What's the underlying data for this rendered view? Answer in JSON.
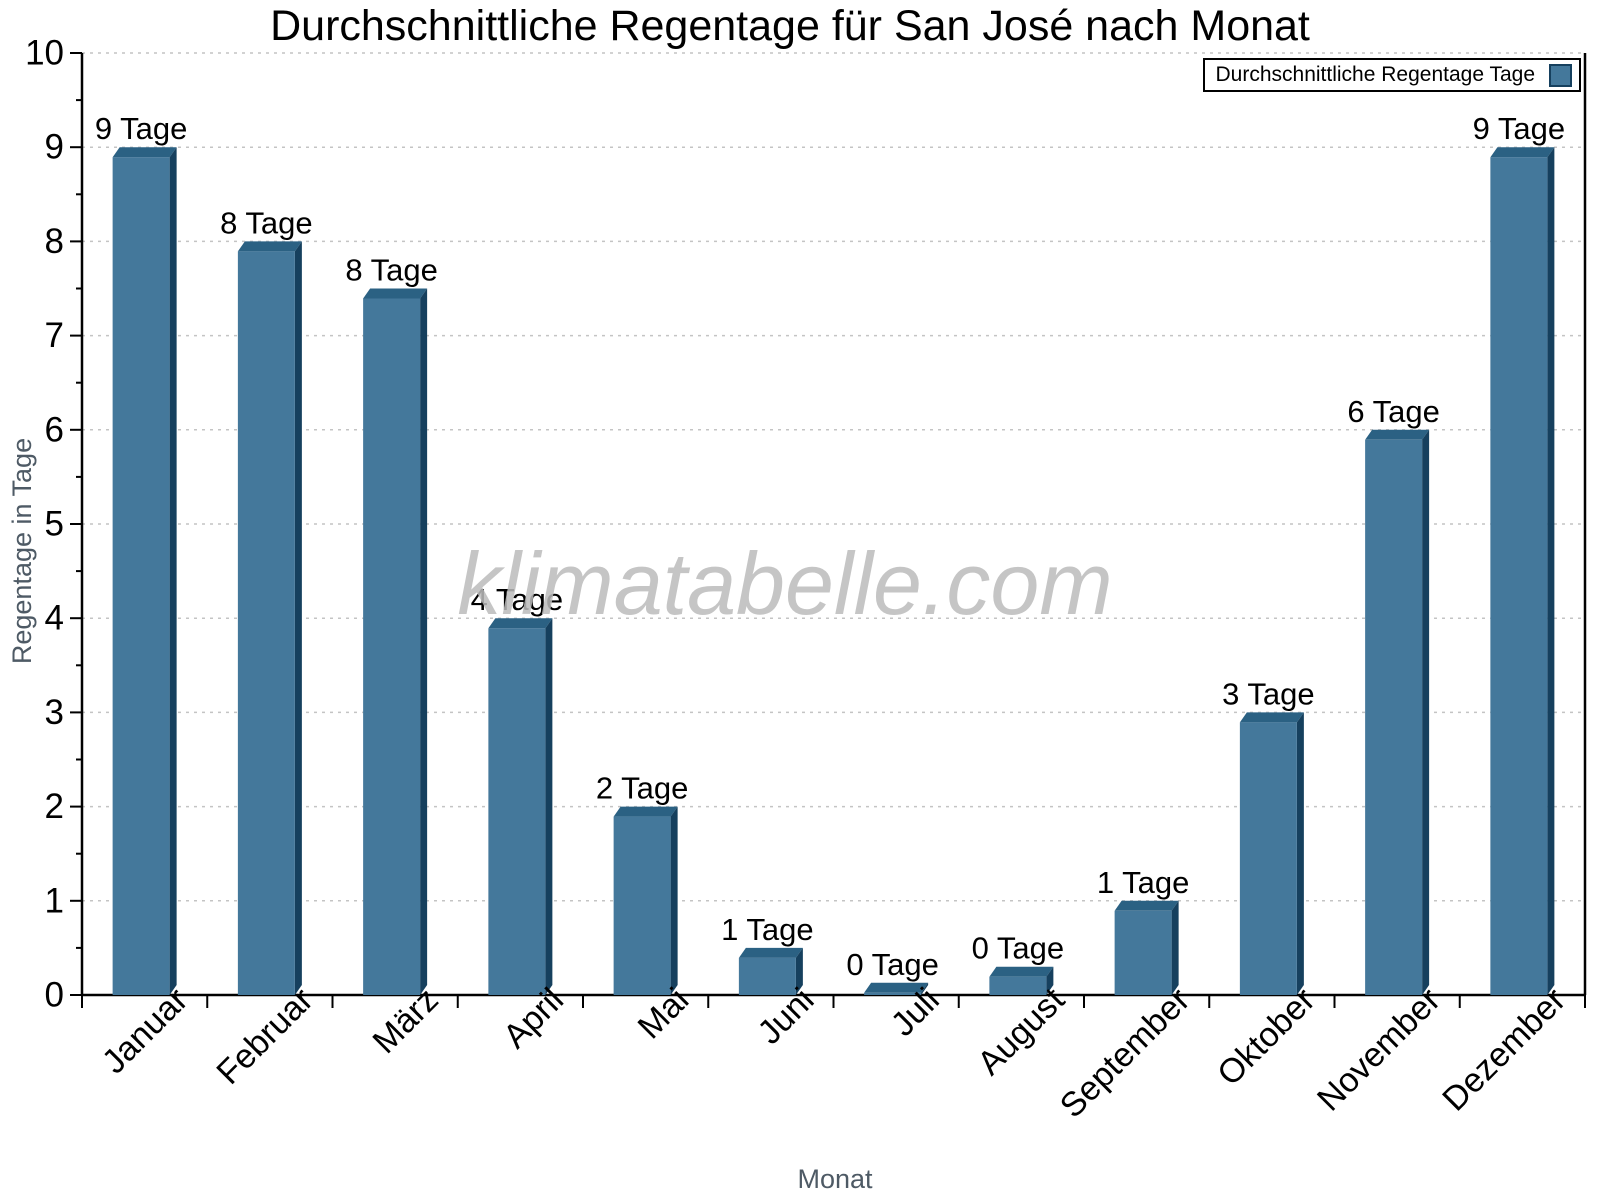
{
  "title": "Durchschnittliche Regentage für San José nach Monat",
  "legend": {
    "label": "Durchschnittliche Regentage Tage",
    "swatch_color": "#44789b"
  },
  "watermark": "klimatabelle.com",
  "chart_data": {
    "type": "bar",
    "title": "Durchschnittliche Regentage für San José nach Monat",
    "xlabel": "Monat",
    "ylabel": "Regentage in Tage",
    "ylim": [
      0,
      10
    ],
    "grid": "horizontal-dotted",
    "legend_position": "top-right",
    "legend_label": "Durchschnittliche Regentage Tage",
    "categories": [
      "Januar",
      "Februar",
      "März",
      "April",
      "Mai",
      "Juni",
      "Juli",
      "August",
      "September",
      "Oktober",
      "November",
      "Dezember"
    ],
    "values": [
      9,
      8,
      8,
      4,
      2,
      1,
      0,
      0,
      1,
      3,
      6,
      9
    ],
    "bar_labels": [
      "9 Tage",
      "8 Tage",
      "8 Tage",
      "4 Tage",
      "2 Tage",
      "1 Tage",
      "0 Tage",
      "0 Tage",
      "1 Tage",
      "3 Tage",
      "6 Tage",
      "9 Tage"
    ],
    "bar_display_values": [
      9,
      8,
      7.5,
      4,
      2,
      0.5,
      0.13,
      0.3,
      1,
      3,
      6,
      9
    ],
    "ytick_labels": [
      "0",
      "1",
      "2",
      "3",
      "4",
      "5",
      "6",
      "7",
      "8",
      "9",
      "10"
    ],
    "colors": {
      "bar_front": "#44789b",
      "bar_top": "#2b6183",
      "bar_side": "#16405e",
      "grid": "#c4c4c4",
      "axis": "#000000",
      "tick_text": "#000000",
      "axis_label_text": "#4e5a65",
      "watermark_text": "#bcbcbc"
    }
  }
}
